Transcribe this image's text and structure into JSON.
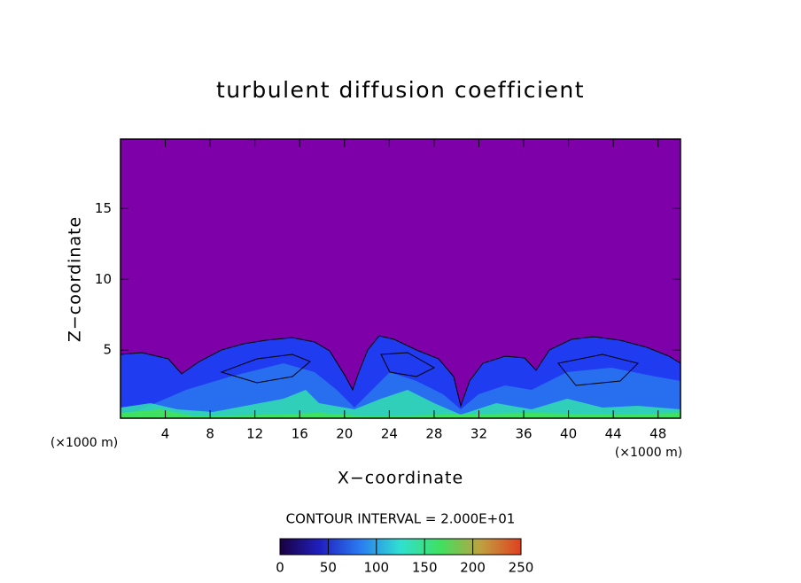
{
  "chart_data": {
    "type": "contour",
    "title": "turbulent diffusion coefficient",
    "xlabel": "X−coordinate",
    "ylabel": "Z−coordinate",
    "x_unit_label": "(×1000 m)",
    "y_unit_label": "(×1000 m)",
    "xlim": [
      0,
      50
    ],
    "ylim": [
      0.2,
      19.9
    ],
    "xticks": [
      4,
      8,
      12,
      16,
      20,
      24,
      28,
      32,
      36,
      40,
      44,
      48
    ],
    "yticks": [
      5,
      10,
      15
    ],
    "contour_interval_label": "CONTOUR INTERVAL = 2.000E+01",
    "colorbar": {
      "lim": [
        0,
        250
      ],
      "ticks": [
        0,
        50,
        100,
        150,
        200,
        250
      ],
      "colors": [
        "#1a0040",
        "#2020c0",
        "#2a7cf0",
        "#30e0d0",
        "#40e060",
        "#c0a040",
        "#e04020"
      ]
    }
  }
}
